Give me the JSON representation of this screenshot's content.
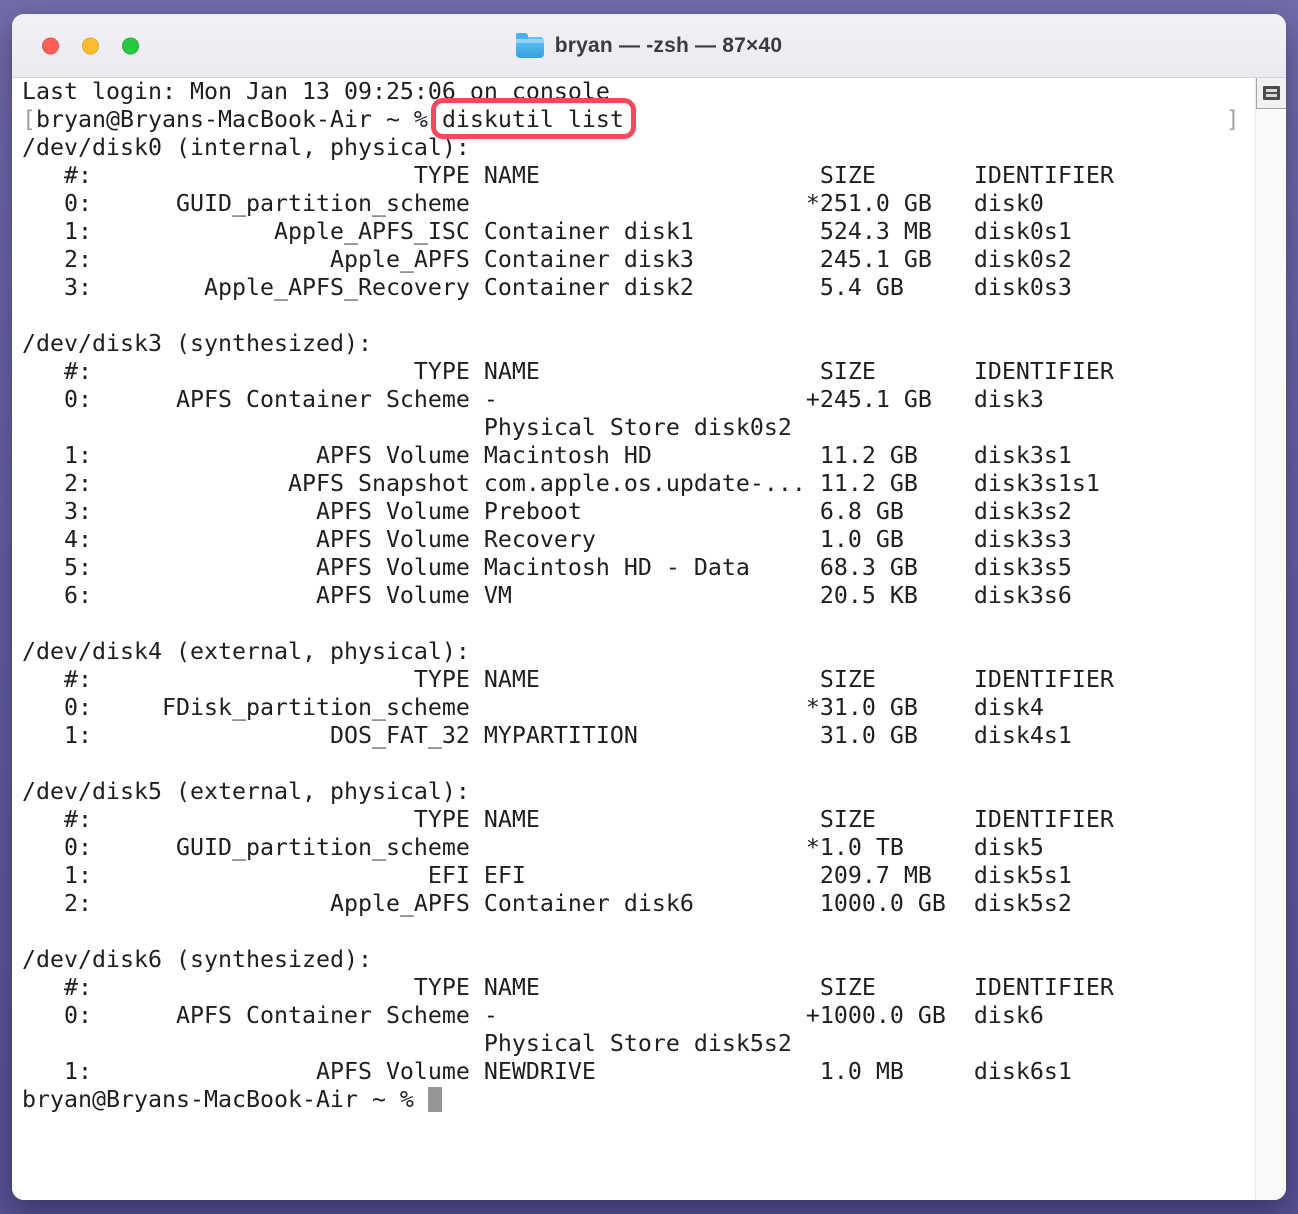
{
  "window": {
    "title": "bryan — -zsh — 87×40",
    "traffic_lights": [
      "close",
      "minimize",
      "zoom"
    ],
    "icons": {
      "proxy_icon": "folder-icon",
      "scrollbar_button": "split-pane-icon"
    },
    "colors": {
      "desktop_purple": "#635fa0",
      "titlebar_bg": "#efeef3",
      "terminal_bg": "#ffffff",
      "terminal_text": "#1f1f21",
      "dim_gray": "#a2a2a6",
      "annotation_red": "#f4485c",
      "traffic_close": "#ff5f57",
      "traffic_minimize": "#febc2e",
      "traffic_zoom": "#28c840",
      "folder_blue": "#36a0e2",
      "cursor_gray": "#969698"
    }
  },
  "terminal": {
    "last_login_line": "Last login: Mon Jan 13 09:25:06 on console",
    "prompt_line": {
      "open_bracket": "[",
      "prompt": "bryan@Bryans-MacBook-Air ~ % ",
      "command": "diskutil list",
      "close_bracket": "]"
    },
    "output_lines": [
      "/dev/disk0 (internal, physical):",
      "   #:                       TYPE NAME                    SIZE       IDENTIFIER",
      "   0:      GUID_partition_scheme                        *251.0 GB   disk0",
      "   1:             Apple_APFS_ISC Container disk1         524.3 MB   disk0s1",
      "   2:                 Apple_APFS Container disk3         245.1 GB   disk0s2",
      "   3:        Apple_APFS_Recovery Container disk2         5.4 GB     disk0s3",
      "",
      "/dev/disk3 (synthesized):",
      "   #:                       TYPE NAME                    SIZE       IDENTIFIER",
      "   0:      APFS Container Scheme -                      +245.1 GB   disk3",
      "                                 Physical Store disk0s2",
      "   1:                APFS Volume Macintosh HD            11.2 GB    disk3s1",
      "   2:              APFS Snapshot com.apple.os.update-... 11.2 GB    disk3s1s1",
      "   3:                APFS Volume Preboot                 6.8 GB     disk3s2",
      "   4:                APFS Volume Recovery                1.0 GB     disk3s3",
      "   5:                APFS Volume Macintosh HD - Data     68.3 GB    disk3s5",
      "   6:                APFS Volume VM                      20.5 KB    disk3s6",
      "",
      "/dev/disk4 (external, physical):",
      "   #:                       TYPE NAME                    SIZE       IDENTIFIER",
      "   0:     FDisk_partition_scheme                        *31.0 GB    disk4",
      "   1:                 DOS_FAT_32 MYPARTITION             31.0 GB    disk4s1",
      "",
      "/dev/disk5 (external, physical):",
      "   #:                       TYPE NAME                    SIZE       IDENTIFIER",
      "   0:      GUID_partition_scheme                        *1.0 TB     disk5",
      "   1:                        EFI EFI                     209.7 MB   disk5s1",
      "   2:                 Apple_APFS Container disk6         1000.0 GB  disk5s2",
      "",
      "/dev/disk6 (synthesized):",
      "   #:                       TYPE NAME                    SIZE       IDENTIFIER",
      "   0:      APFS Container Scheme -                      +1000.0 GB  disk6",
      "                                 Physical Store disk5s2",
      "   1:                APFS Volume NEWDRIVE                1.0 MB     disk6s1",
      ""
    ],
    "final_prompt": "bryan@Bryans-MacBook-Air ~ % "
  }
}
